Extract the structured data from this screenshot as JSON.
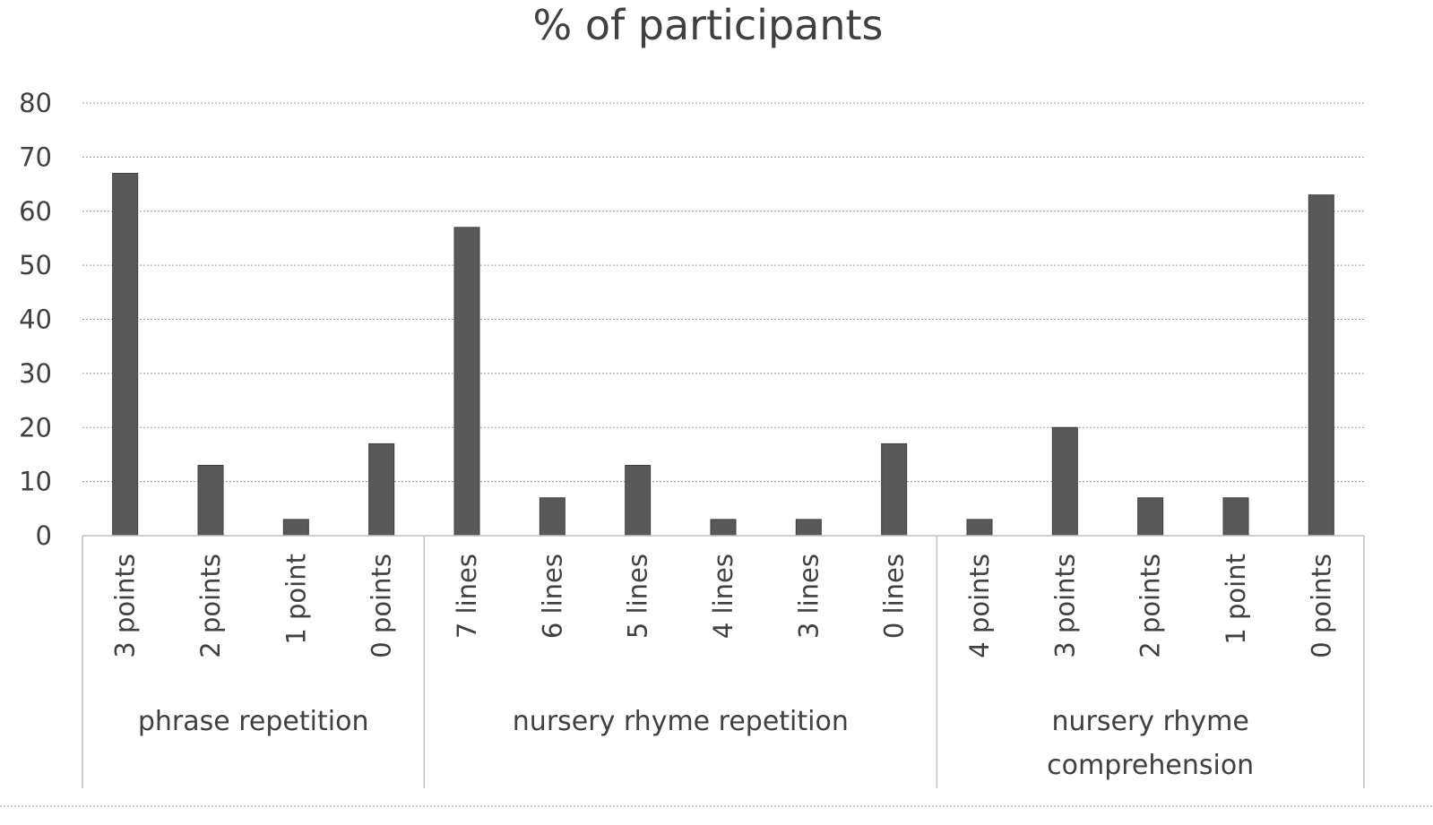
{
  "chart_data": {
    "type": "bar",
    "title": "% of participants",
    "xlabel": "",
    "ylabel": "",
    "ylim": [
      0,
      80
    ],
    "yticks": [
      0,
      10,
      20,
      30,
      40,
      50,
      60,
      70,
      80
    ],
    "grid": true,
    "legend": "none",
    "bar_color": "#595959",
    "groups": [
      {
        "label_lines": [
          "phrase repetition"
        ],
        "categories": [
          "3 points",
          "2 points",
          "1 point",
          "0 points"
        ],
        "values": [
          67,
          13,
          3,
          17
        ]
      },
      {
        "label_lines": [
          "nursery rhyme repetition"
        ],
        "categories": [
          "7 lines",
          "6 lines",
          "5 lines",
          "4 lines",
          "3 lines",
          "0 lines"
        ],
        "values": [
          57,
          7,
          13,
          3,
          3,
          17
        ]
      },
      {
        "label_lines": [
          "nursery rhyme",
          "comprehension"
        ],
        "categories": [
          "4 points",
          "3 points",
          "2 points",
          "1 point",
          "0 points"
        ],
        "values": [
          3,
          20,
          7,
          7,
          63
        ]
      }
    ]
  }
}
